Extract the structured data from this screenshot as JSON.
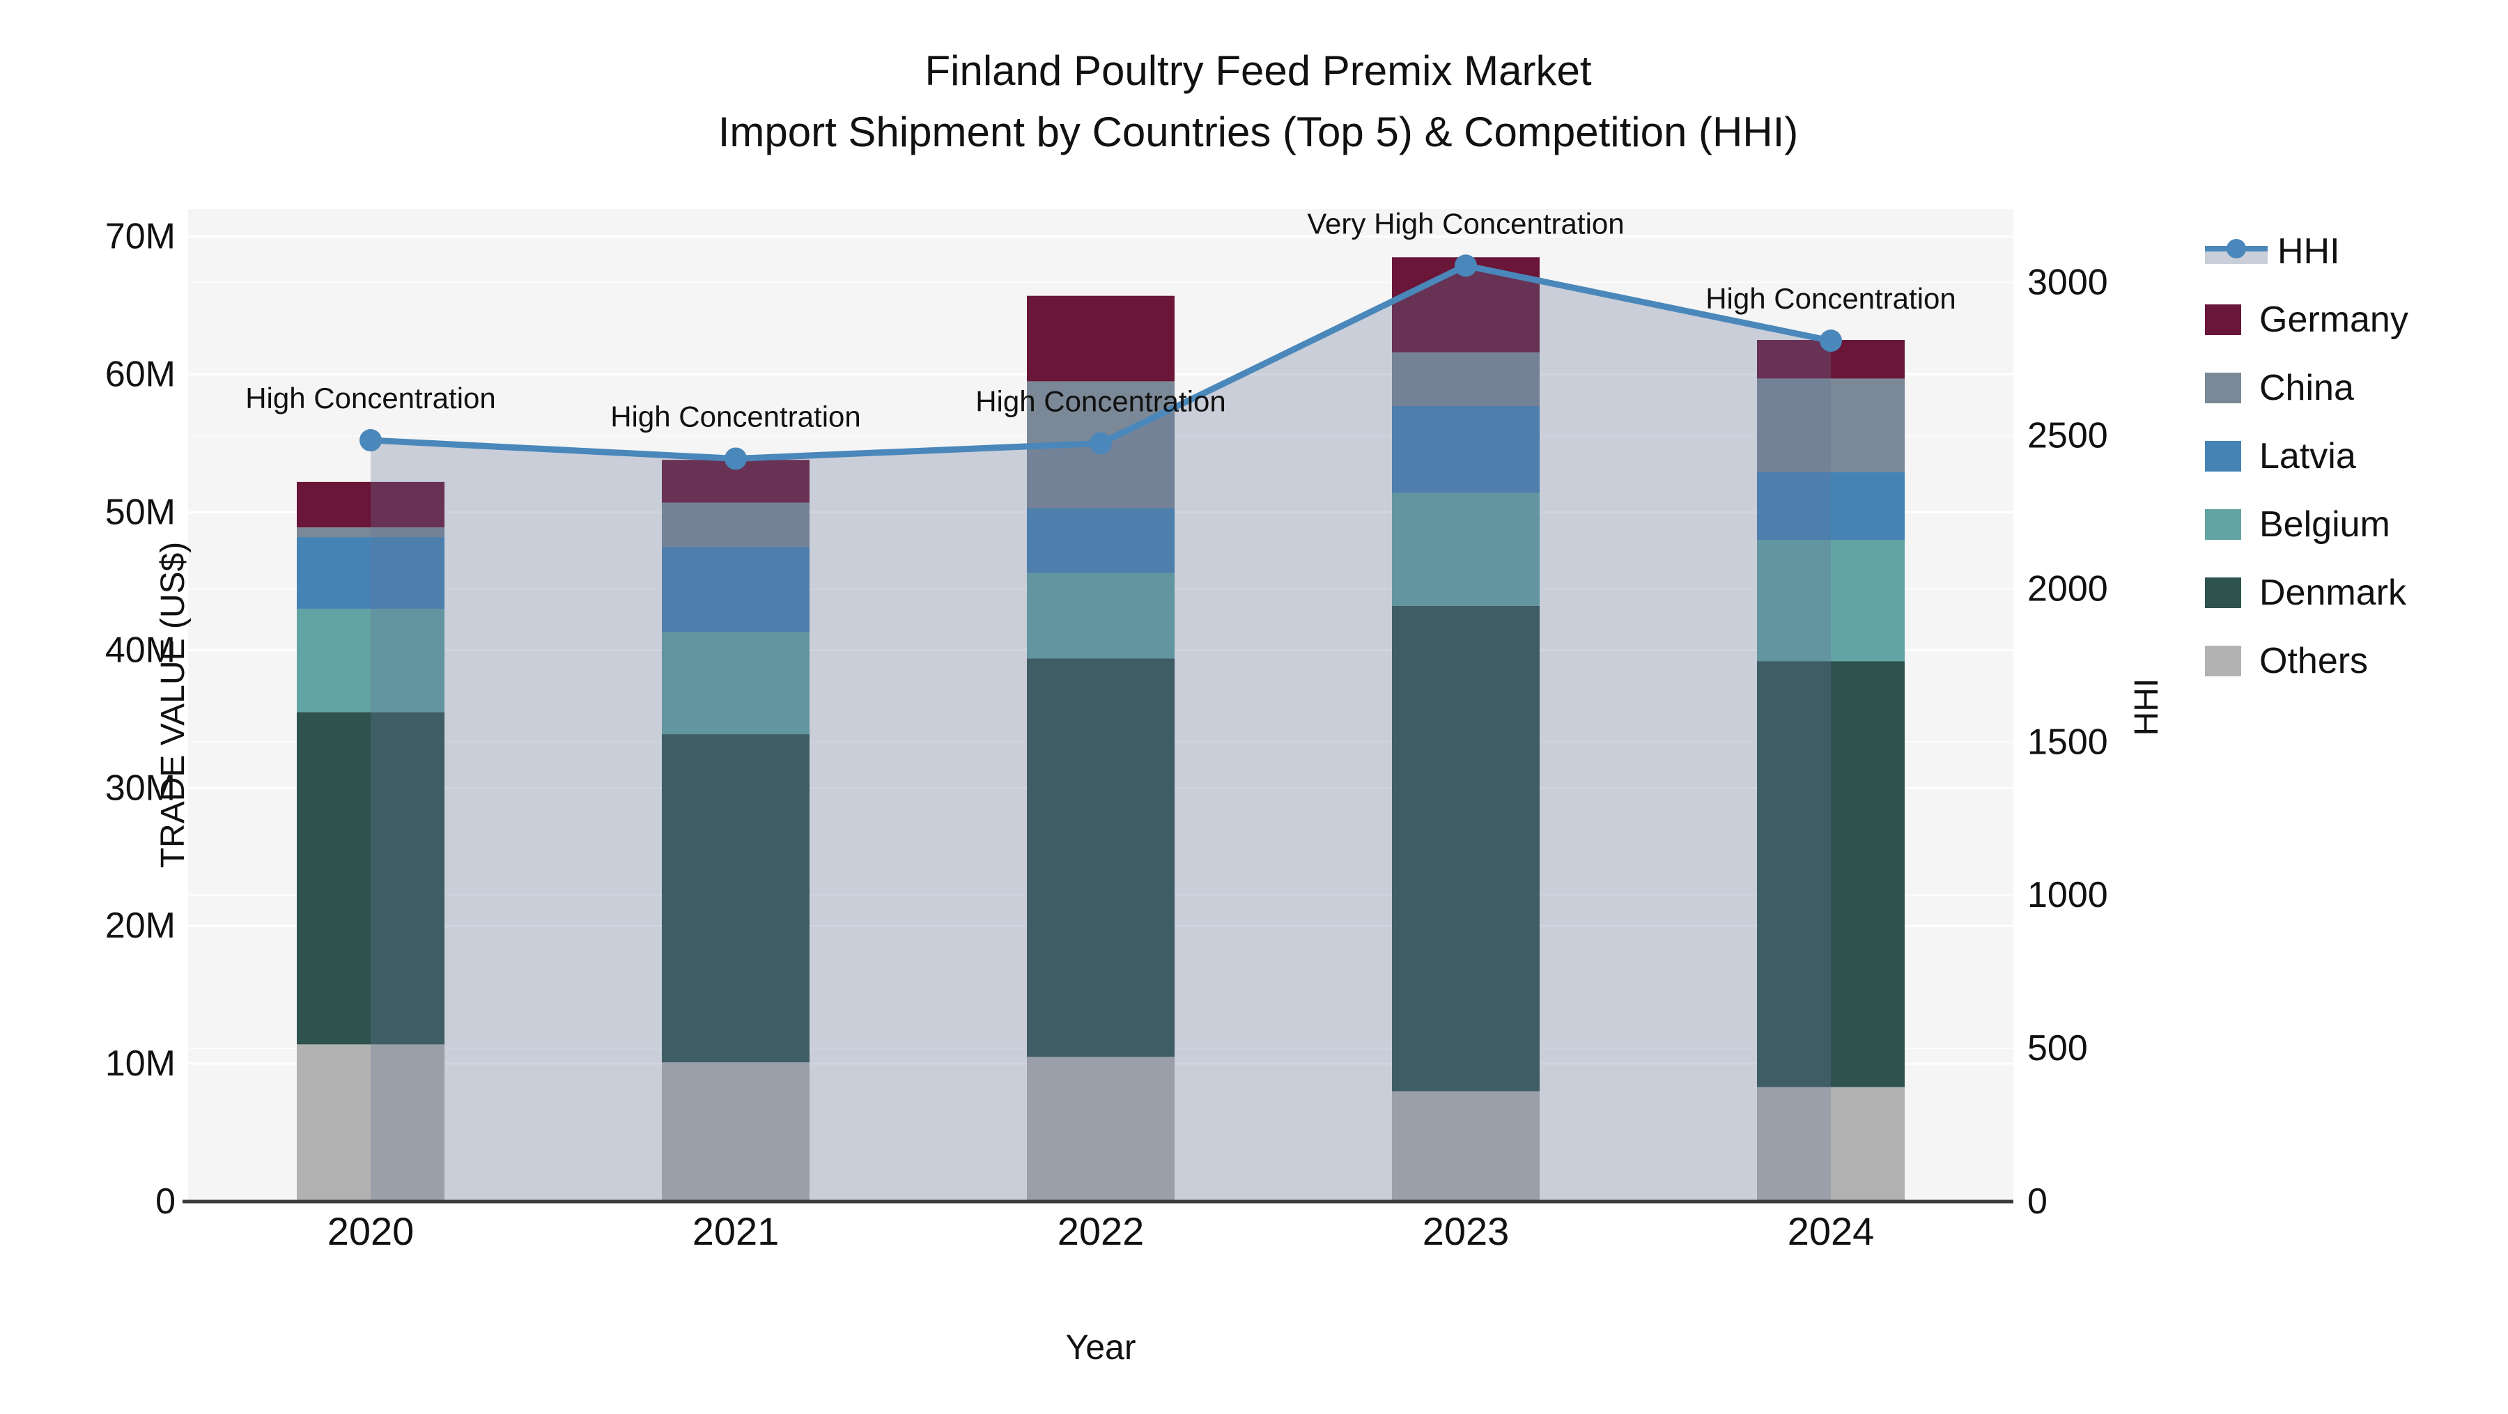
{
  "title": {
    "line1": "Finland Poultry Feed Premix Market",
    "line2": "Import Shipment by Countries (Top 5) & Competition (HHI)"
  },
  "axes": {
    "left_title": "TRADE VALUE (US$)",
    "right_title": "HHI",
    "x_title": "Year",
    "left_ticks": [
      "0",
      "10M",
      "20M",
      "30M",
      "40M",
      "50M",
      "60M",
      "70M"
    ],
    "right_ticks": [
      "0",
      "500",
      "1000",
      "1500",
      "2000",
      "2500",
      "3000"
    ]
  },
  "legend": [
    {
      "label": "HHI",
      "type": "line",
      "color": "#4a87ba"
    },
    {
      "label": "Germany",
      "type": "box",
      "color": "#6a1638"
    },
    {
      "label": "China",
      "type": "box",
      "color": "#7b8897"
    },
    {
      "label": "Latvia",
      "type": "box",
      "color": "#4583b5"
    },
    {
      "label": "Belgium",
      "type": "box",
      "color": "#62a4a3"
    },
    {
      "label": "Denmark",
      "type": "box",
      "color": "#2e534f"
    },
    {
      "label": "Others",
      "type": "box",
      "color": "#b2b2b2"
    }
  ],
  "colors": {
    "plot_bg": "#f5f5f5",
    "gridline": "#ffffff",
    "axis_line": "#3a3a3a",
    "hhi_line": "#4a87ba",
    "hhi_area": "rgba(100,116,153,0.30)",
    "text": "#111111"
  },
  "chart_data": {
    "type": "combo-stacked-bar-line",
    "title": "Finland Poultry Feed Premix Market — Import Shipment by Countries (Top 5) & Competition (HHI)",
    "categories": [
      "2020",
      "2021",
      "2022",
      "2023",
      "2024"
    ],
    "xlabel": "Year",
    "ylabel": "TRADE VALUE (US$)",
    "y2label": "HHI",
    "ylim_millions": [
      0,
      72
    ],
    "y2lim": [
      0,
      3240
    ],
    "grid": true,
    "legend_position": "right",
    "bar_unit": "million US$",
    "series": [
      {
        "name": "Germany",
        "color": "#6a1638",
        "values": [
          3.3,
          3.1,
          6.2,
          6.9,
          2.8
        ]
      },
      {
        "name": "China",
        "color": "#7b8897",
        "values": [
          0.7,
          3.2,
          9.2,
          3.9,
          6.8
        ]
      },
      {
        "name": "Latvia",
        "color": "#4583b5",
        "values": [
          5.2,
          6.2,
          4.7,
          6.3,
          4.9
        ]
      },
      {
        "name": "Belgium",
        "color": "#62a4a3",
        "values": [
          7.5,
          7.4,
          6.2,
          8.2,
          8.8
        ]
      },
      {
        "name": "Denmark",
        "color": "#2e534f",
        "values": [
          24.1,
          23.8,
          28.9,
          35.2,
          30.9
        ]
      },
      {
        "name": "Others",
        "color": "#b2b2b2",
        "values": [
          11.4,
          10.1,
          10.5,
          8.0,
          8.3
        ]
      }
    ],
    "bar_totals_millions": [
      52.2,
      53.8,
      65.7,
      68.5,
      62.5
    ],
    "line_series": {
      "name": "HHI",
      "color": "#4a87ba",
      "values": [
        2485,
        2425,
        2475,
        3055,
        2810
      ],
      "area_fill": true
    },
    "annotations": [
      "High Concentration",
      "High Concentration",
      "High Concentration",
      "Very High Concentration",
      "High Concentration"
    ]
  }
}
